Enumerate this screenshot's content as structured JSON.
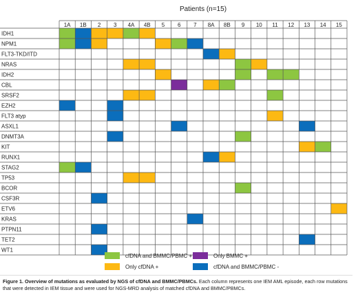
{
  "header": {
    "patients_label": "Patients (n=15)"
  },
  "columns": [
    "1A",
    "1B",
    "2",
    "3",
    "4A",
    "4B",
    "5",
    "6",
    "7",
    "8A",
    "8B",
    "9",
    "10",
    "11",
    "12",
    "13",
    "14",
    "15"
  ],
  "genes": [
    "IDH1",
    "NPM1",
    "FLT3-TKD/ITD",
    "NRAS",
    "IDH2",
    "CBL",
    "SRSF2",
    "EZH2",
    "FLT3 atyp",
    "ASXL1",
    "DNMT3A",
    "KIT",
    "RUNX1",
    "STAG2",
    "TP53",
    "BCOR",
    "CSF3R",
    "ETV6",
    "KRAS",
    "PTPN11",
    "TET2",
    "WT1"
  ],
  "categories": {
    "G": {
      "label": "cfDNA and BMMC/PBMC +",
      "color": "#8dc641"
    },
    "O": {
      "label": "Only cfDNA +",
      "color": "#fdb913"
    },
    "P": {
      "label": "Only BMMC +",
      "color": "#7b2d9b"
    },
    "B": {
      "label": "cfDNA and BMMC/PBMC -",
      "color": "#0b6ebc"
    }
  },
  "legend_order": [
    "G",
    "P",
    "O",
    "B"
  ],
  "cells": [
    [
      "G",
      "B",
      "O",
      "O",
      "G",
      "O",
      "-",
      "-",
      "-",
      "-",
      "-",
      "-",
      "-",
      "-",
      "-",
      "-",
      "-",
      "-"
    ],
    [
      "G",
      "B",
      "O",
      "-",
      "-",
      "-",
      "O",
      "G",
      "B",
      "-",
      "-",
      "-",
      "-",
      "-",
      "-",
      "-",
      "-",
      "-"
    ],
    [
      "-",
      "-",
      "-",
      "-",
      "-",
      "-",
      "-",
      "-",
      "-",
      "B",
      "O",
      "-",
      "-",
      "-",
      "-",
      "-",
      "-",
      "-"
    ],
    [
      "-",
      "-",
      "-",
      "-",
      "O",
      "O",
      "-",
      "-",
      "-",
      "-",
      "-",
      "G",
      "O",
      "-",
      "-",
      "-",
      "-",
      "-"
    ],
    [
      "-",
      "-",
      "-",
      "-",
      "-",
      "-",
      "O",
      "-",
      "-",
      "-",
      "-",
      "G",
      "-",
      "G",
      "G",
      "-",
      "-",
      "-"
    ],
    [
      "-",
      "-",
      "-",
      "-",
      "-",
      "-",
      "-",
      "P",
      "-",
      "O",
      "G",
      "-",
      "-",
      "-",
      "-",
      "-",
      "-",
      "-"
    ],
    [
      "-",
      "-",
      "-",
      "-",
      "O",
      "O",
      "-",
      "-",
      "-",
      "-",
      "-",
      "-",
      "-",
      "G",
      "-",
      "-",
      "-",
      "-"
    ],
    [
      "B",
      "-",
      "-",
      "B",
      "-",
      "-",
      "-",
      "-",
      "-",
      "-",
      "-",
      "-",
      "-",
      "-",
      "-",
      "-",
      "-",
      "-"
    ],
    [
      "-",
      "-",
      "-",
      "B",
      "-",
      "-",
      "-",
      "-",
      "-",
      "-",
      "-",
      "-",
      "-",
      "O",
      "-",
      "-",
      "-",
      "-"
    ],
    [
      "-",
      "-",
      "-",
      "-",
      "-",
      "-",
      "-",
      "B",
      "-",
      "-",
      "-",
      "-",
      "-",
      "-",
      "-",
      "B",
      "-",
      "-"
    ],
    [
      "-",
      "-",
      "-",
      "B",
      "-",
      "-",
      "-",
      "-",
      "-",
      "-",
      "-",
      "G",
      "-",
      "-",
      "-",
      "-",
      "-",
      "-"
    ],
    [
      "-",
      "-",
      "-",
      "-",
      "-",
      "-",
      "-",
      "-",
      "-",
      "-",
      "-",
      "-",
      "-",
      "-",
      "-",
      "O",
      "G",
      "-"
    ],
    [
      "-",
      "-",
      "-",
      "-",
      "-",
      "-",
      "-",
      "-",
      "-",
      "B",
      "O",
      "-",
      "-",
      "-",
      "-",
      "-",
      "-",
      "-"
    ],
    [
      "G",
      "B",
      "-",
      "-",
      "-",
      "-",
      "-",
      "-",
      "-",
      "-",
      "-",
      "-",
      "-",
      "-",
      "-",
      "-",
      "-",
      "-"
    ],
    [
      "-",
      "-",
      "-",
      "-",
      "O",
      "O",
      "-",
      "-",
      "-",
      "-",
      "-",
      "-",
      "-",
      "-",
      "-",
      "-",
      "-",
      "-"
    ],
    [
      "-",
      "-",
      "-",
      "-",
      "-",
      "-",
      "-",
      "-",
      "-",
      "-",
      "-",
      "G",
      "-",
      "-",
      "-",
      "-",
      "-",
      "-"
    ],
    [
      "-",
      "-",
      "B",
      "-",
      "-",
      "-",
      "-",
      "-",
      "-",
      "-",
      "-",
      "-",
      "-",
      "-",
      "-",
      "-",
      "-",
      "-"
    ],
    [
      "-",
      "-",
      "-",
      "-",
      "-",
      "-",
      "-",
      "-",
      "-",
      "-",
      "-",
      "-",
      "-",
      "-",
      "-",
      "-",
      "-",
      "O"
    ],
    [
      "-",
      "-",
      "-",
      "-",
      "-",
      "-",
      "-",
      "-",
      "B",
      "-",
      "-",
      "-",
      "-",
      "-",
      "-",
      "-",
      "-",
      "-"
    ],
    [
      "-",
      "-",
      "B",
      "-",
      "-",
      "-",
      "-",
      "-",
      "-",
      "-",
      "-",
      "-",
      "-",
      "-",
      "-",
      "-",
      "-",
      "-"
    ],
    [
      "-",
      "-",
      "-",
      "-",
      "-",
      "-",
      "-",
      "-",
      "-",
      "-",
      "-",
      "-",
      "-",
      "-",
      "-",
      "B",
      "-",
      "-"
    ],
    [
      "-",
      "-",
      "B",
      "-",
      "-",
      "-",
      "-",
      "-",
      "-",
      "-",
      "-",
      "-",
      "-",
      "-",
      "-",
      "-",
      "-",
      "-"
    ]
  ],
  "caption": {
    "bold": "Figure 1. Overview of mutations as evaluated by NGS of cfDNA and BMMC/PBMCs.",
    "text": " Each column represents one IEM AML episode, each row mutations that were detected in IEM tissue and were used for NGS-MRD analysis of matched cfDNA and BMMC/PBMCs."
  }
}
